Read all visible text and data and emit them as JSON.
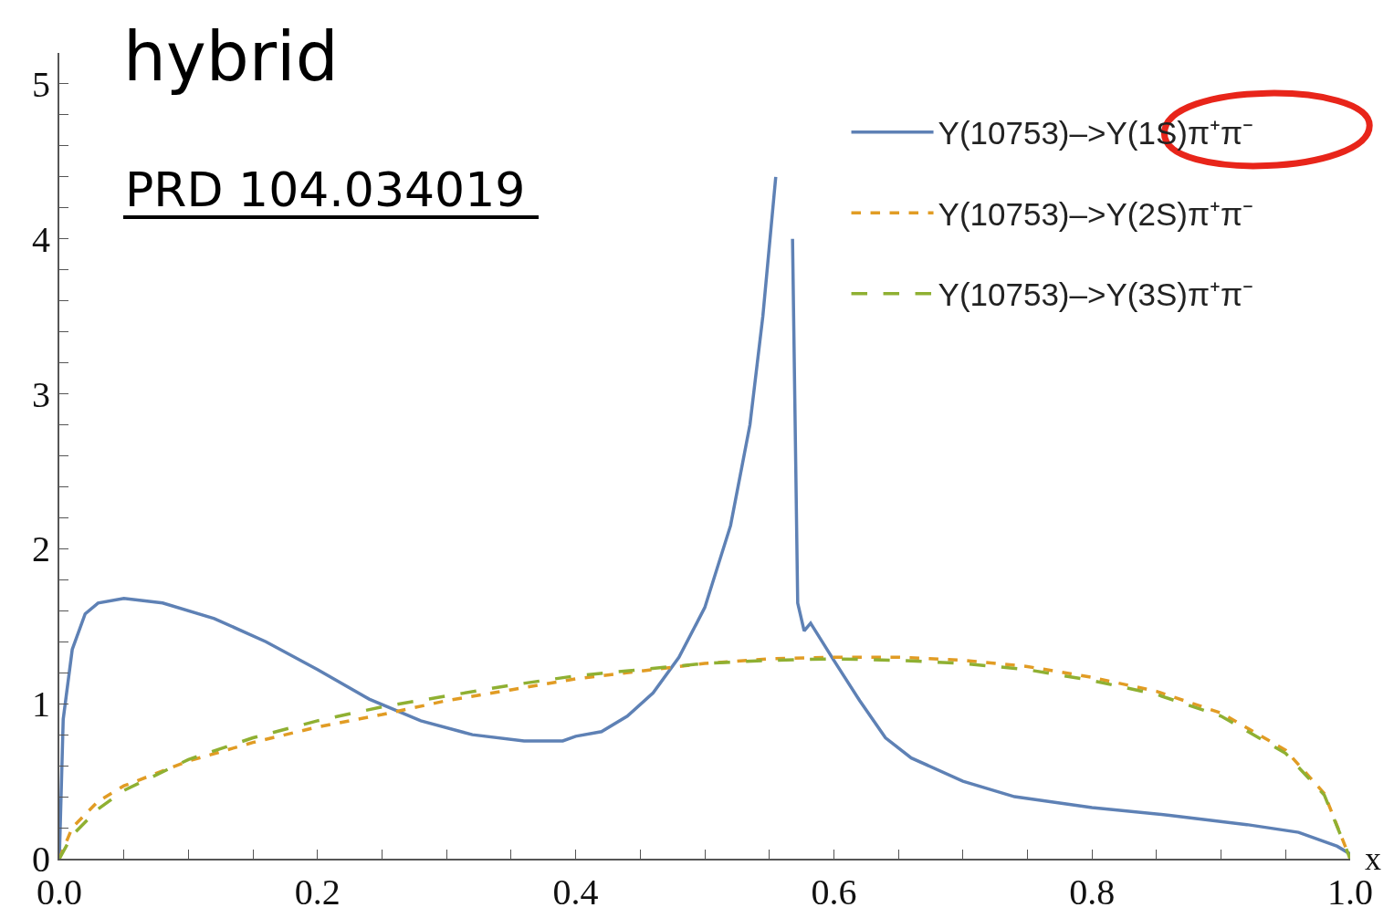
{
  "chart_data": {
    "type": "line",
    "title": "hybrid",
    "subtitle": "PRD 104.034019",
    "xlabel": "x",
    "xlim": [
      0,
      1
    ],
    "ylim": [
      0,
      5.2
    ],
    "xticks": [
      {
        "value": 0,
        "label": "0.0"
      },
      {
        "value": 0.05,
        "label": null
      },
      {
        "value": 0.1,
        "label": null
      },
      {
        "value": 0.15,
        "label": null
      },
      {
        "value": 0.2,
        "label": "0.2"
      },
      {
        "value": 0.25,
        "label": null
      },
      {
        "value": 0.3,
        "label": null
      },
      {
        "value": 0.35,
        "label": null
      },
      {
        "value": 0.4,
        "label": "0.4"
      },
      {
        "value": 0.45,
        "label": null
      },
      {
        "value": 0.5,
        "label": null
      },
      {
        "value": 0.55,
        "label": null
      },
      {
        "value": 0.6,
        "label": "0.6"
      },
      {
        "value": 0.65,
        "label": null
      },
      {
        "value": 0.7,
        "label": null
      },
      {
        "value": 0.75,
        "label": null
      },
      {
        "value": 0.8,
        "label": "0.8"
      },
      {
        "value": 0.85,
        "label": null
      },
      {
        "value": 0.9,
        "label": null
      },
      {
        "value": 0.95,
        "label": null
      },
      {
        "value": 1,
        "label": "1.0"
      }
    ],
    "yticks": [
      0,
      {
        "value": 0.2,
        "label": null
      },
      {
        "value": 0.4,
        "label": null
      },
      {
        "value": 0.6,
        "label": null
      },
      {
        "value": 0.8,
        "label": null
      },
      1,
      {
        "value": 1.2,
        "label": null
      },
      {
        "value": 1.4,
        "label": null
      },
      {
        "value": 1.6,
        "label": null
      },
      {
        "value": 1.8,
        "label": null
      },
      2,
      {
        "value": 2.2,
        "label": null
      },
      {
        "value": 2.4,
        "label": null
      },
      {
        "value": 2.6,
        "label": null
      },
      {
        "value": 2.8,
        "label": null
      },
      3,
      {
        "value": 3.2,
        "label": null
      },
      {
        "value": 3.4,
        "label": null
      },
      {
        "value": 3.6,
        "label": null
      },
      {
        "value": 3.8,
        "label": null
      },
      4,
      {
        "value": 4.2,
        "label": null
      },
      {
        "value": 4.4,
        "label": null
      },
      {
        "value": 4.6,
        "label": null
      },
      {
        "value": 4.8,
        "label": null
      },
      5
    ],
    "legend": "top right",
    "marker": "none",
    "series": [
      {
        "name": "Y(10753)–>Y(1S)π⁺π⁻",
        "color": "#5e81b5",
        "line_style": "solid",
        "x": [
          0,
          0.003,
          0.01,
          0.02,
          0.03,
          0.05,
          0.08,
          0.12,
          0.16,
          0.2,
          0.24,
          0.28,
          0.32,
          0.36,
          0.39,
          0.4,
          0.42,
          0.44,
          0.46,
          0.48,
          0.5,
          0.52,
          0.535,
          0.545,
          0.555,
          0.56,
          0.565,
          0.568,
          0.572,
          0.577,
          0.582,
          0.6,
          0.62,
          0.64,
          0.66,
          0.7,
          0.74,
          0.8,
          0.86,
          0.92,
          0.96,
          0.99,
          1.0
        ],
        "values": [
          0,
          0.9,
          1.35,
          1.58,
          1.65,
          1.68,
          1.65,
          1.55,
          1.4,
          1.22,
          1.03,
          0.89,
          0.8,
          0.76,
          0.76,
          0.79,
          0.82,
          0.92,
          1.07,
          1.3,
          1.62,
          2.15,
          2.8,
          3.5,
          4.4,
          null,
          null,
          4.0,
          1.65,
          1.47,
          1.52,
          1.28,
          1.02,
          0.78,
          0.65,
          0.5,
          0.4,
          0.33,
          0.28,
          0.22,
          0.17,
          0.08,
          0.03
        ]
      },
      {
        "name": "Y(10753)–>Y(2S)π⁺π⁻",
        "color": "#e19c24",
        "line_style": "dashed",
        "x": [
          0,
          0.01,
          0.03,
          0.05,
          0.1,
          0.15,
          0.2,
          0.25,
          0.3,
          0.35,
          0.4,
          0.45,
          0.5,
          0.55,
          0.6,
          0.65,
          0.7,
          0.75,
          0.8,
          0.85,
          0.9,
          0.95,
          0.98,
          1.0
        ],
        "values": [
          0,
          0.2,
          0.37,
          0.47,
          0.63,
          0.75,
          0.85,
          0.93,
          1.02,
          1.09,
          1.16,
          1.21,
          1.26,
          1.29,
          1.3,
          1.3,
          1.28,
          1.24,
          1.17,
          1.08,
          0.94,
          0.7,
          0.42,
          0
        ]
      },
      {
        "name": "Y(10753)–>Y(3S)π⁺π⁻",
        "color": "#8fb032",
        "line_style": "longdash",
        "x": [
          0,
          0.01,
          0.03,
          0.05,
          0.1,
          0.15,
          0.2,
          0.25,
          0.3,
          0.35,
          0.4,
          0.45,
          0.5,
          0.55,
          0.6,
          0.65,
          0.7,
          0.75,
          0.8,
          0.85,
          0.9,
          0.95,
          0.98,
          1.0
        ],
        "values": [
          0,
          0.15,
          0.32,
          0.44,
          0.64,
          0.78,
          0.89,
          0.98,
          1.05,
          1.12,
          1.18,
          1.22,
          1.26,
          1.28,
          1.29,
          1.28,
          1.26,
          1.22,
          1.15,
          1.06,
          0.92,
          0.68,
          0.41,
          0
        ]
      }
    ]
  }
}
